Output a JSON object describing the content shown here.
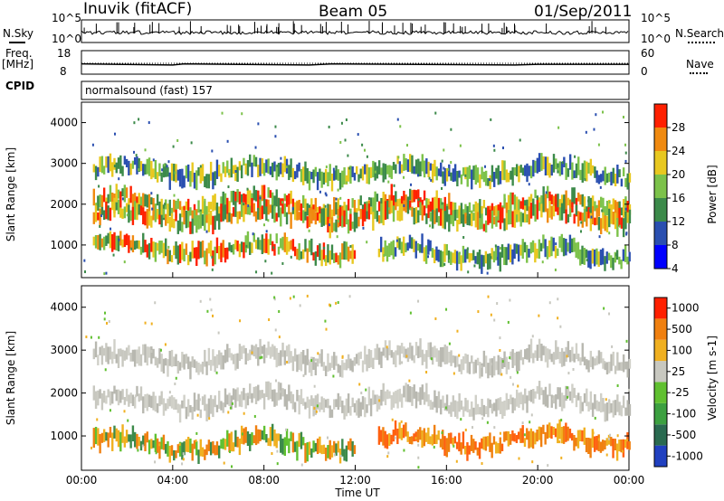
{
  "header": {
    "station": "Inuvik (fitACF)",
    "beam": "Beam 05",
    "date": "01/Sep/2011"
  },
  "strips": {
    "nsky": {
      "label": "N.Sky",
      "ticks": [
        "10^5",
        "10^0"
      ],
      "right_label": "N.Search",
      "right_ticks": [
        "10^5",
        "10^0"
      ]
    },
    "freq": {
      "label_line1": "Freq.",
      "label_line2": "[MHz]",
      "ticks": [
        "18",
        "8"
      ],
      "right_label": "Nave",
      "right_ticks": [
        "60",
        "0"
      ]
    },
    "cpid": {
      "label": "CPID",
      "value": "normalsound (fast) 157"
    }
  },
  "chart_data": [
    {
      "type": "heatmap",
      "panel": "power",
      "ylabel": "Slant Range [km]",
      "yticks": [
        "1000",
        "2000",
        "3000",
        "4000"
      ],
      "ylim": [
        200,
        4500
      ],
      "xlim_hours": [
        0,
        24
      ],
      "colorbar_label": "Power [dB]",
      "colorbar_ticks": [
        "28",
        "24",
        "20",
        "16",
        "12",
        "8",
        "4"
      ],
      "colorbar_colors": [
        "#0000ff",
        "#2a4fb0",
        "#3c8a4a",
        "#7cc24a",
        "#e8c820",
        "#f08a10",
        "#ff2000"
      ],
      "bands": [
        {
          "range_km": 2000,
          "t_start": 0.5,
          "t_end": 24,
          "level": "high"
        },
        {
          "range_km": 1700,
          "t_start": 0.5,
          "t_end": 24,
          "level": "high"
        },
        {
          "range_km": 900,
          "t_start": 0.5,
          "t_end": 12,
          "level": "high"
        },
        {
          "range_km": 800,
          "t_start": 13,
          "t_end": 24,
          "level": "mid"
        },
        {
          "range_km": 2800,
          "t_start": 0.5,
          "t_end": 24,
          "level": "mid"
        }
      ]
    },
    {
      "type": "heatmap",
      "panel": "velocity",
      "ylabel": "Slant Range [km]",
      "yticks": [
        "1000",
        "2000",
        "3000",
        "4000"
      ],
      "ylim": [
        200,
        4500
      ],
      "xlim_hours": [
        0,
        24
      ],
      "colorbar_label": "Velocity [m s-1]",
      "colorbar_ticks": [
        "1000",
        "500",
        "100",
        "25",
        "-25",
        "-100",
        "-500",
        "-1000"
      ],
      "colorbar_colors": [
        "#2040c0",
        "#2a6a50",
        "#3ca040",
        "#60c030",
        "#c8c8c0",
        "#f0b020",
        "#f08010",
        "#ff2000"
      ],
      "bands": [
        {
          "range_km": 1800,
          "t_start": 0.5,
          "t_end": 24,
          "level": "neutral"
        },
        {
          "range_km": 2800,
          "t_start": 0.5,
          "t_end": 24,
          "level": "neutral"
        },
        {
          "range_km": 800,
          "t_start": 0.5,
          "t_end": 12,
          "level": "away"
        },
        {
          "range_km": 900,
          "t_start": 13,
          "t_end": 24,
          "level": "toward"
        }
      ]
    }
  ],
  "xaxis": {
    "label": "Time UT",
    "ticks": [
      "00:00",
      "04:00",
      "08:00",
      "12:00",
      "16:00",
      "20:00",
      "00:00"
    ]
  }
}
